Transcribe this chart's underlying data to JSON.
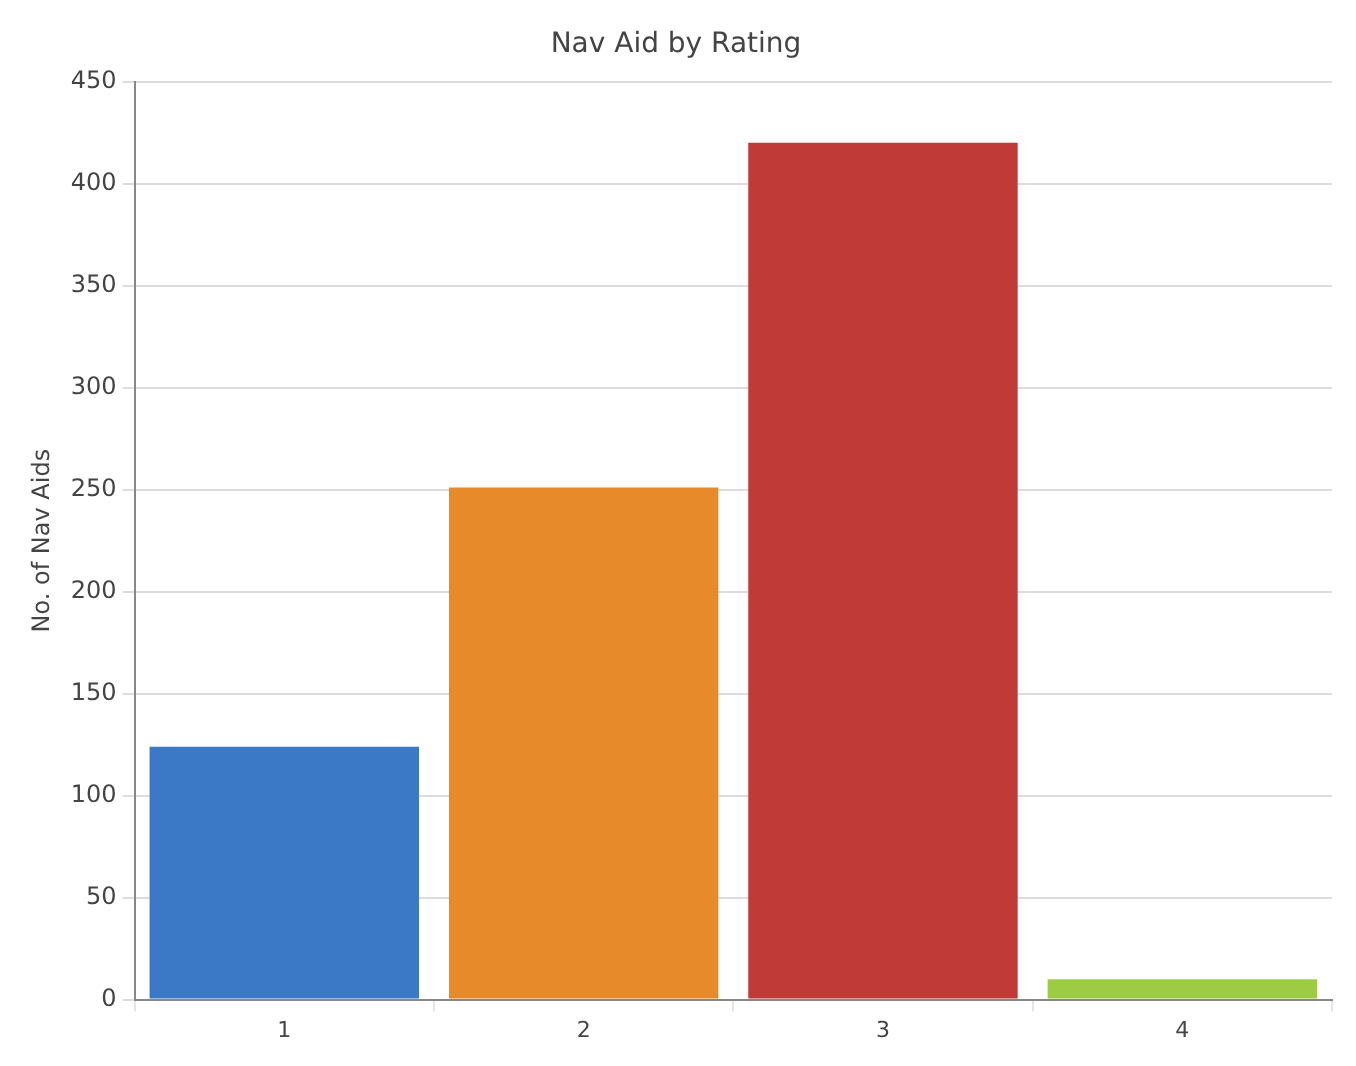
{
  "chart_data": {
    "type": "bar",
    "title": "Nav Aid by Rating",
    "ylabel": "No. of Nav Aids",
    "categories": [
      "1",
      "2",
      "3",
      "4"
    ],
    "values": [
      124,
      251,
      420,
      10
    ],
    "colors": [
      "#3b78c6",
      "#e68a2a",
      "#c03a38",
      "#9ccc44"
    ],
    "ylim": [
      0,
      450
    ],
    "yticks": [
      0,
      50,
      100,
      150,
      200,
      250,
      300,
      350,
      400,
      450
    ],
    "grid": "y",
    "legend": false
  }
}
